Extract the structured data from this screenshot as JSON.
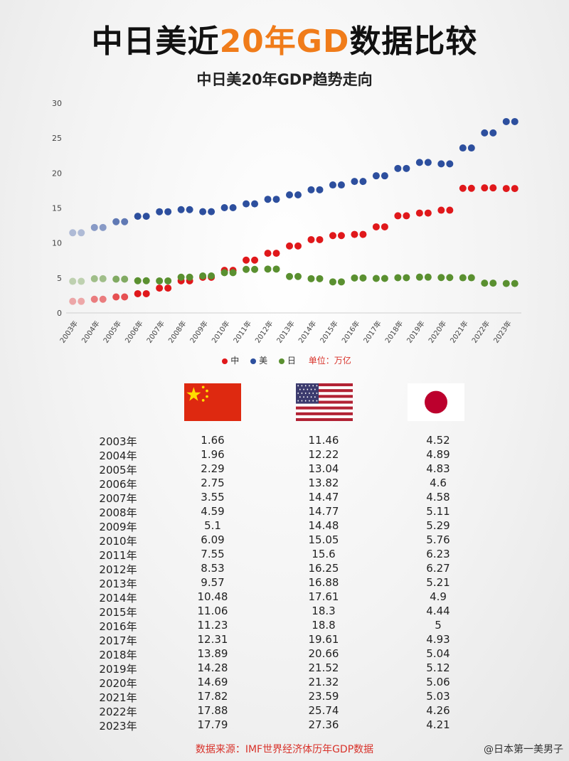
{
  "title": {
    "part1": "中日美近",
    "highlight": "20年GD",
    "part2": "数据比较"
  },
  "colors": {
    "china": "#e0181b",
    "usa": "#2d4f9e",
    "japan": "#5a9030",
    "highlight": "#f07c1a",
    "source": "#d8322a"
  },
  "legend": {
    "china": "中",
    "usa": "美",
    "japan": "日",
    "unit": "单位：万亿"
  },
  "flags": {
    "china": "china-flag",
    "usa": "usa-flag",
    "japan": "japan-flag"
  },
  "chart_data": {
    "type": "scatter",
    "title": "中日美20年GDP趋势走向",
    "xlabel": "",
    "ylabel": "",
    "ylim": [
      0,
      30
    ],
    "yticks": [
      0,
      5,
      10,
      15,
      20,
      25,
      30
    ],
    "categories": [
      "2003年",
      "2004年",
      "2005年",
      "2006年",
      "2007年",
      "2008年",
      "2009年",
      "2010年",
      "2011年",
      "2012年",
      "2013年",
      "2014年",
      "2015年",
      "2016年",
      "2017年",
      "2018年",
      "2019年",
      "2020年",
      "2021年",
      "2022年",
      "2023年"
    ],
    "grid": false,
    "legend_position": "bottom",
    "series": [
      {
        "name": "中",
        "color": "#e0181b",
        "values": [
          1.66,
          1.96,
          2.29,
          2.75,
          3.55,
          4.59,
          5.1,
          6.09,
          7.55,
          8.53,
          9.57,
          10.48,
          11.06,
          11.23,
          12.31,
          13.89,
          14.28,
          14.69,
          17.82,
          17.88,
          17.79
        ]
      },
      {
        "name": "美",
        "color": "#2d4f9e",
        "values": [
          11.46,
          12.22,
          13.04,
          13.82,
          14.47,
          14.77,
          14.48,
          15.05,
          15.6,
          16.25,
          16.88,
          17.61,
          18.3,
          18.8,
          19.61,
          20.66,
          21.52,
          21.32,
          23.59,
          25.74,
          27.36
        ]
      },
      {
        "name": "日",
        "color": "#5a9030",
        "values": [
          4.52,
          4.89,
          4.83,
          4.6,
          4.58,
          5.11,
          5.29,
          5.76,
          6.23,
          6.27,
          5.21,
          4.9,
          4.44,
          5,
          4.93,
          5.04,
          5.12,
          5.06,
          5.03,
          4.26,
          4.21
        ]
      }
    ]
  },
  "table": {
    "rows": [
      {
        "year": "2003年",
        "cn": "1.66",
        "us": "11.46",
        "jp": "4.52"
      },
      {
        "year": "2004年",
        "cn": "1.96",
        "us": "12.22",
        "jp": "4.89"
      },
      {
        "year": "2005年",
        "cn": "2.29",
        "us": "13.04",
        "jp": "4.83"
      },
      {
        "year": "2006年",
        "cn": "2.75",
        "us": "13.82",
        "jp": "4.6"
      },
      {
        "year": "2007年",
        "cn": "3.55",
        "us": "14.47",
        "jp": "4.58"
      },
      {
        "year": "2008年",
        "cn": "4.59",
        "us": "14.77",
        "jp": "5.11"
      },
      {
        "year": "2009年",
        "cn": "5.1",
        "us": "14.48",
        "jp": "5.29"
      },
      {
        "year": "2010年",
        "cn": "6.09",
        "us": "15.05",
        "jp": "5.76"
      },
      {
        "year": "2011年",
        "cn": "7.55",
        "us": "15.6",
        "jp": "6.23"
      },
      {
        "year": "2012年",
        "cn": "8.53",
        "us": "16.25",
        "jp": "6.27"
      },
      {
        "year": "2013年",
        "cn": "9.57",
        "us": "16.88",
        "jp": "5.21"
      },
      {
        "year": "2014年",
        "cn": "10.48",
        "us": "17.61",
        "jp": "4.9"
      },
      {
        "year": "2015年",
        "cn": "11.06",
        "us": "18.3",
        "jp": "4.44"
      },
      {
        "year": "2016年",
        "cn": "11.23",
        "us": "18.8",
        "jp": "5"
      },
      {
        "year": "2017年",
        "cn": "12.31",
        "us": "19.61",
        "jp": "4.93"
      },
      {
        "year": "2018年",
        "cn": "13.89",
        "us": "20.66",
        "jp": "5.04"
      },
      {
        "year": "2019年",
        "cn": "14.28",
        "us": "21.52",
        "jp": "5.12"
      },
      {
        "year": "2020年",
        "cn": "14.69",
        "us": "21.32",
        "jp": "5.06"
      },
      {
        "year": "2021年",
        "cn": "17.82",
        "us": "23.59",
        "jp": "5.03"
      },
      {
        "year": "2022年",
        "cn": "17.88",
        "us": "25.74",
        "jp": "4.26"
      },
      {
        "year": "2023年",
        "cn": "17.79",
        "us": "27.36",
        "jp": "4.21"
      }
    ]
  },
  "source": "数据来源：IMF世界经济体历年GDP数据",
  "watermark": "@日本第一美男子"
}
